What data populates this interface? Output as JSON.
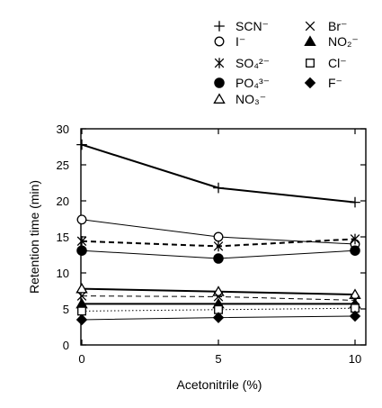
{
  "chart_data": {
    "type": "line",
    "xlabel": "Acetonitrile (%)",
    "ylabel": "Retention time (min)",
    "x": [
      0,
      5,
      10
    ],
    "xticks": [
      0,
      5,
      10
    ],
    "xlim": [
      0,
      10
    ],
    "ylim": [
      0,
      30
    ],
    "yticks": [
      0,
      5,
      10,
      15,
      20,
      25,
      30
    ],
    "grid": false,
    "legend_position": "top-right",
    "series": [
      {
        "name": "SCN⁻",
        "marker": "plus",
        "line": "solid",
        "weight": "thick",
        "values": [
          27.8,
          21.8,
          19.8
        ]
      },
      {
        "name": "I⁻",
        "marker": "circle-open",
        "line": "solid",
        "weight": "thin",
        "values": [
          17.4,
          15.0,
          14.0
        ]
      },
      {
        "name": "SO₄²⁻",
        "marker": "asterisk",
        "line": "dashed",
        "weight": "thick",
        "values": [
          14.4,
          13.7,
          14.7
        ]
      },
      {
        "name": "PO₄³⁻",
        "marker": "circle-filled",
        "line": "solid",
        "weight": "thin",
        "values": [
          13.1,
          12.0,
          13.1
        ]
      },
      {
        "name": "NO₃⁻",
        "marker": "triangle-open",
        "line": "solid",
        "weight": "thick",
        "values": [
          7.8,
          7.4,
          7.0
        ]
      },
      {
        "name": "Br⁻",
        "marker": "cross",
        "line": "dashed",
        "weight": "thin",
        "values": [
          6.8,
          6.7,
          6.2
        ]
      },
      {
        "name": "NO₂⁻",
        "marker": "triangle-filled",
        "line": "solid",
        "weight": "thick",
        "values": [
          5.7,
          5.7,
          5.7
        ]
      },
      {
        "name": "Cl⁻",
        "marker": "square-open",
        "line": "dotted",
        "weight": "thin",
        "values": [
          4.7,
          4.9,
          5.1
        ]
      },
      {
        "name": "F⁻",
        "marker": "diamond-filled",
        "line": "solid",
        "weight": "thin",
        "values": [
          3.5,
          3.8,
          4.0
        ]
      }
    ]
  }
}
